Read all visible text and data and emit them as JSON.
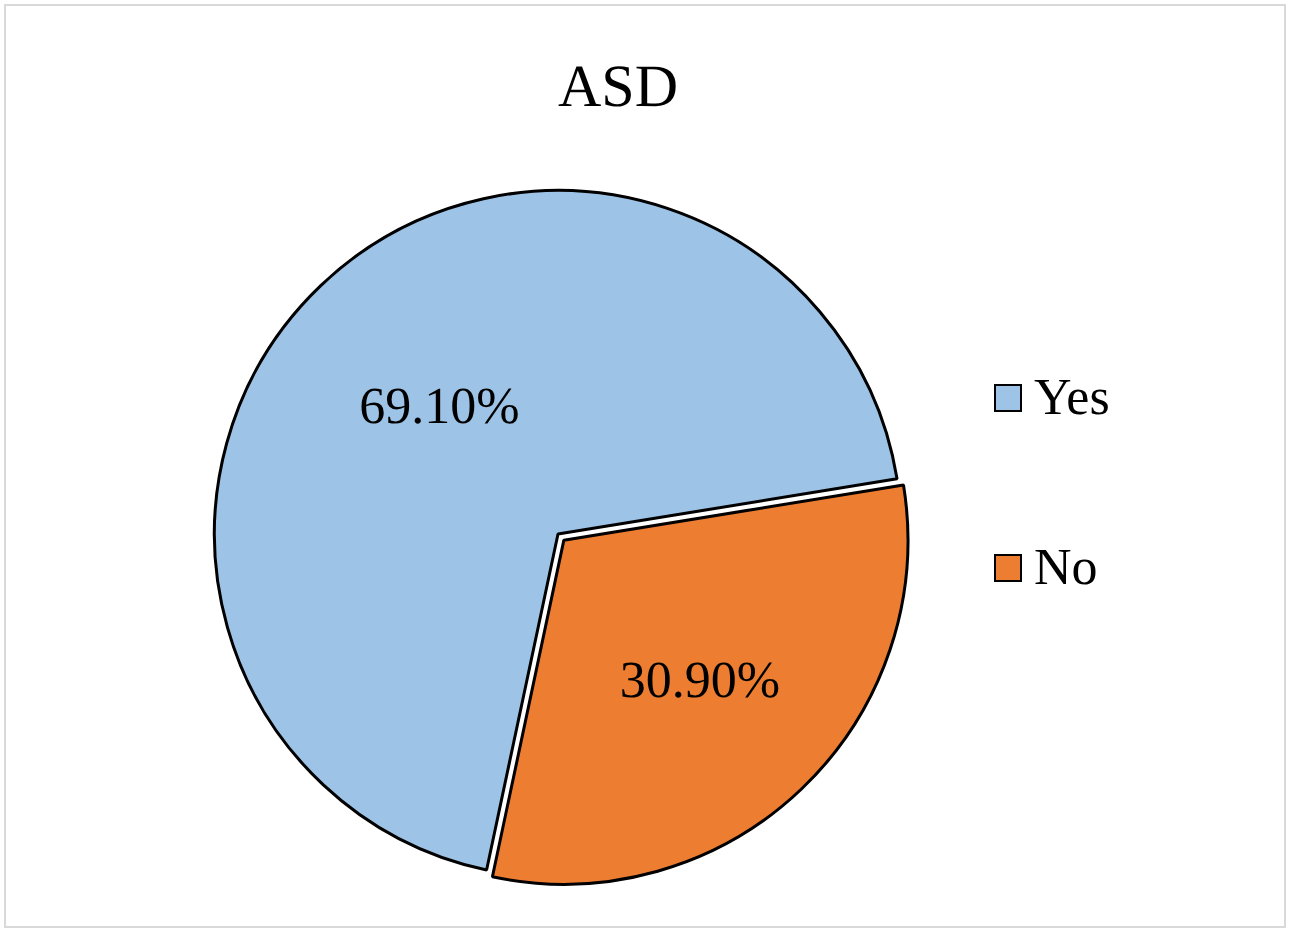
{
  "chart_data": {
    "type": "pie",
    "title": "ASD",
    "categories": [
      "Yes",
      "No"
    ],
    "values": [
      69.1,
      30.9
    ],
    "colors": [
      "#9dc3e6",
      "#ed7d31"
    ],
    "value_labels": [
      "69.10%",
      "30.90%"
    ],
    "legend": "right"
  }
}
